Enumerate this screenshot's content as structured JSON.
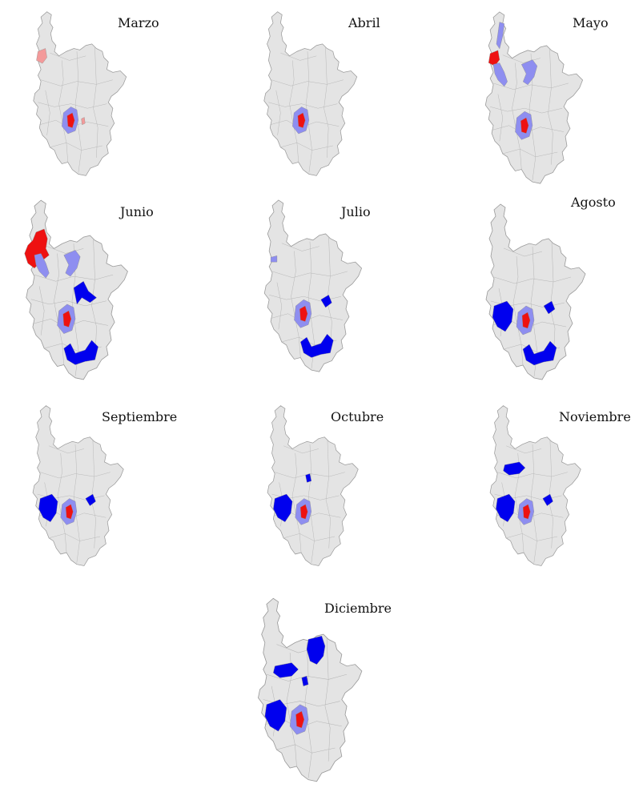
{
  "colors": {
    "base_fill": "#e4e4e4",
    "border": "#9a9a9a",
    "red": "#ee1111",
    "light_red": "#f39a9a",
    "blue": "#0000ee",
    "light_blue": "#8e8ef0"
  },
  "panels": [
    {
      "month": "Marzo",
      "highlights": [
        {
          "area": "northwest-coast",
          "color": "light_red"
        },
        {
          "area": "center-halo",
          "color": "light_blue"
        },
        {
          "area": "center-core",
          "color": "red"
        },
        {
          "area": "center-east-spot",
          "color": "light_red"
        }
      ]
    },
    {
      "month": "Abril",
      "highlights": [
        {
          "area": "center-halo",
          "color": "light_blue"
        },
        {
          "area": "center-core",
          "color": "red"
        }
      ]
    },
    {
      "month": "Mayo",
      "highlights": [
        {
          "area": "north-strip",
          "color": "light_blue"
        },
        {
          "area": "northwest-coast",
          "color": "red"
        },
        {
          "area": "northwest-band",
          "color": "light_blue"
        },
        {
          "area": "north-central",
          "color": "light_blue"
        },
        {
          "area": "center-halo",
          "color": "light_blue"
        },
        {
          "area": "center-core",
          "color": "red"
        }
      ]
    },
    {
      "month": "Junio",
      "highlights": [
        {
          "area": "northwest-large",
          "color": "red"
        },
        {
          "area": "northwest-band",
          "color": "light_blue"
        },
        {
          "area": "north-central",
          "color": "light_blue"
        },
        {
          "area": "east-central",
          "color": "blue"
        },
        {
          "area": "south-east",
          "color": "blue"
        },
        {
          "area": "center-halo",
          "color": "light_blue"
        },
        {
          "area": "center-core",
          "color": "red"
        }
      ]
    },
    {
      "month": "Julio",
      "highlights": [
        {
          "area": "northwest-small",
          "color": "light_blue"
        },
        {
          "area": "east-spot",
          "color": "blue"
        },
        {
          "area": "south-east",
          "color": "blue"
        },
        {
          "area": "center-halo",
          "color": "light_blue"
        },
        {
          "area": "center-core",
          "color": "red"
        }
      ]
    },
    {
      "month": "Agosto",
      "highlights": [
        {
          "area": "west-central",
          "color": "blue"
        },
        {
          "area": "east-spot",
          "color": "blue"
        },
        {
          "area": "south-east",
          "color": "blue"
        },
        {
          "area": "center-halo",
          "color": "light_blue"
        },
        {
          "area": "center-core",
          "color": "red"
        }
      ]
    },
    {
      "month": "Septiembre",
      "highlights": [
        {
          "area": "west-central",
          "color": "blue"
        },
        {
          "area": "east-spot",
          "color": "blue"
        },
        {
          "area": "center-halo",
          "color": "light_blue"
        },
        {
          "area": "center-core",
          "color": "red"
        }
      ]
    },
    {
      "month": "Octubre",
      "highlights": [
        {
          "area": "west-central",
          "color": "blue"
        },
        {
          "area": "north-spot",
          "color": "blue"
        },
        {
          "area": "center-halo",
          "color": "light_blue"
        },
        {
          "area": "center-core",
          "color": "red"
        }
      ]
    },
    {
      "month": "Noviembre",
      "highlights": [
        {
          "area": "north-west-block",
          "color": "blue"
        },
        {
          "area": "west-central",
          "color": "blue"
        },
        {
          "area": "east-spot",
          "color": "blue"
        },
        {
          "area": "center-halo",
          "color": "light_blue"
        },
        {
          "area": "center-core",
          "color": "red"
        }
      ]
    },
    {
      "month": "Diciembre",
      "highlights": [
        {
          "area": "north-east-block",
          "color": "blue"
        },
        {
          "area": "north-west-block",
          "color": "blue"
        },
        {
          "area": "west-central",
          "color": "blue"
        },
        {
          "area": "north-spot",
          "color": "blue"
        },
        {
          "area": "center-halo",
          "color": "light_blue"
        },
        {
          "area": "center-core",
          "color": "red"
        }
      ]
    }
  ]
}
